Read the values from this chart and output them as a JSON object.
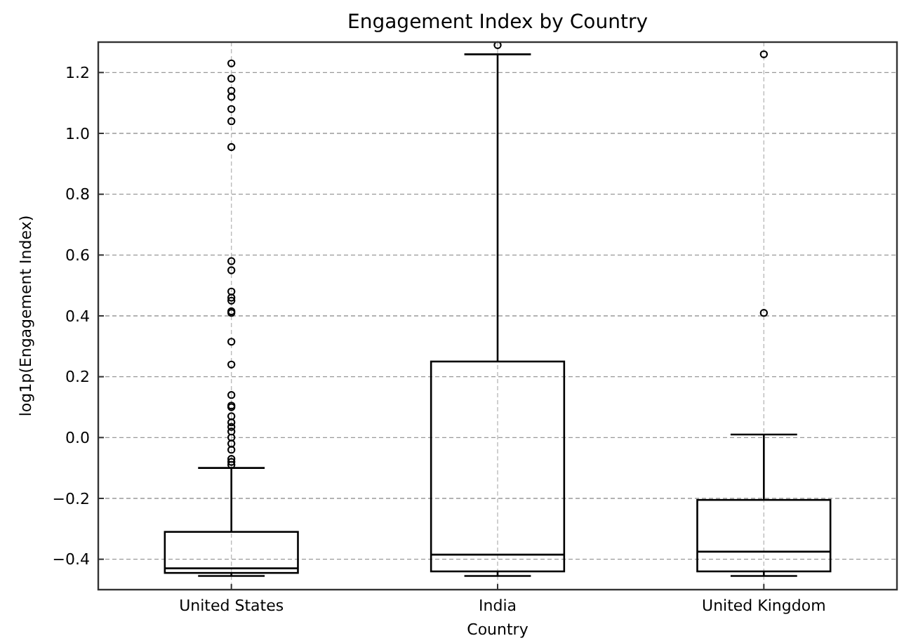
{
  "chart_data": {
    "type": "box",
    "title": "Engagement Index by Country",
    "xlabel": "Country",
    "ylabel": "log1p(Engagement Index)",
    "categories": [
      "United States",
      "India",
      "United Kingdom"
    ],
    "boxes": [
      {
        "low": -0.455,
        "q1": -0.445,
        "median": -0.43,
        "q3": -0.31,
        "high": -0.1,
        "outliers": [
          1.23,
          1.18,
          1.14,
          1.12,
          1.08,
          1.04,
          0.955,
          0.58,
          0.55,
          0.48,
          0.46,
          0.45,
          0.415,
          0.41,
          0.315,
          0.24,
          0.14,
          0.105,
          0.1,
          0.07,
          0.05,
          0.035,
          0.02,
          0,
          -0.02,
          -0.04,
          -0.07,
          -0.08,
          -0.09
        ]
      },
      {
        "low": -0.455,
        "q1": -0.44,
        "median": -0.385,
        "q3": 0.25,
        "high": 1.26,
        "outliers": [
          1.29
        ]
      },
      {
        "low": -0.455,
        "q1": -0.44,
        "median": -0.375,
        "q3": -0.205,
        "high": 0.01,
        "outliers": [
          0.41,
          1.26
        ]
      }
    ],
    "color": "#000000",
    "ylim": [
      -0.5,
      1.3
    ],
    "yticks": [
      {
        "value": -0.4,
        "label": "−0.4"
      },
      {
        "value": -0.2,
        "label": "−0.2"
      },
      {
        "value": 0,
        "label": "0.0"
      },
      {
        "value": 0.2,
        "label": "0.2"
      },
      {
        "value": 0.4,
        "label": "0.4"
      },
      {
        "value": 0.6,
        "label": "0.6"
      },
      {
        "value": 0.8,
        "label": "0.8"
      },
      {
        "value": 1,
        "label": "1.0"
      },
      {
        "value": 1.2,
        "label": "1.2"
      }
    ],
    "grid": true
  }
}
